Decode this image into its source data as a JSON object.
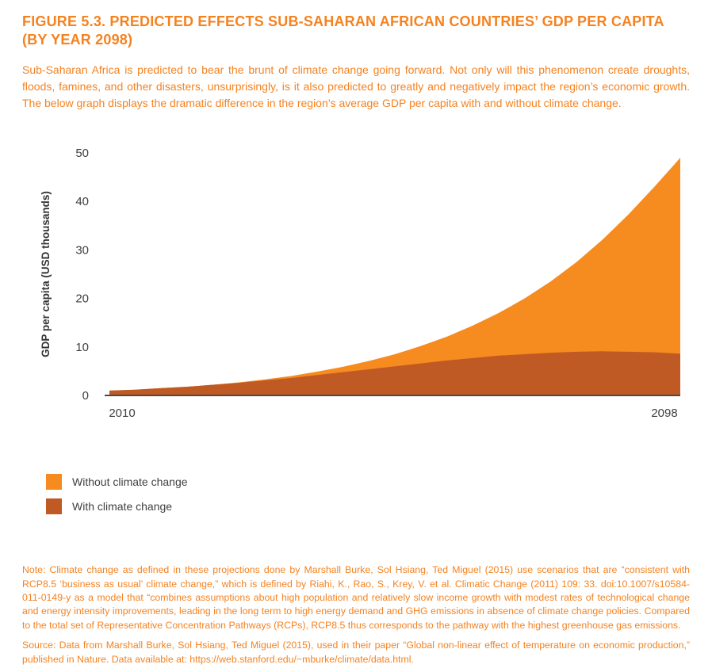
{
  "figure": {
    "title_line1": "FIGURE 5.3. PREDICTED EFFECTS SUB-SAHARAN AFRICAN COUNTRIES’ GDP PER CAPITA",
    "title_line2": "(BY YEAR 2098)",
    "intro": "Sub-Saharan Africa is predicted to bear the brunt of climate change going forward. Not only will this phenomenon create droughts, floods, famines, and other disasters, unsurprisingly, is it also predicted to greatly and negatively impact the region’s economic growth. The below graph displays the dramatic difference in the region’s average GDP per capita with and without climate change.",
    "note": "Note: Climate change as defined in these projections done by Marshall Burke, Sol Hsiang, Ted Miguel (2015) use scenarios that are “consistent with RCP8.5 ‘business as usual’ climate change,” which is defined by Riahi, K., Rao, S., Krey, V. et al. Climatic Change (2011) 109: 33. doi:10.1007/s10584-011-0149-y as a model that “combines assumptions about high population and relatively slow income growth with modest rates of technological change and energy intensity improvements, leading in the long term to high energy demand and GHG emissions in absence of climate change policies. Compared to the total set of Representative Concentration Pathways (RCPs), RCP8.5 thus corresponds to the pathway with the highest greenhouse gas emissions.",
    "source": "Source: Data from Marshall Burke, Sol Hsiang, Ted Miguel (2015), used in their paper “Global non-linear effect of temperature on economic production,” published in Nature. Data available at: https://web.stanford.edu/~mburke/climate/data.html."
  },
  "colors": {
    "accent_orange": "#F58220",
    "area_without": "#F68B1F",
    "area_with": "#C05A24",
    "axis_line": "#4a4a4c",
    "axis_text": "#3f3f41"
  },
  "chart_data": {
    "type": "area",
    "title": "",
    "xlabel": "",
    "ylabel": "GDP per capita (USD thousands)",
    "ylim": [
      0,
      50
    ],
    "yticks": [
      0,
      10,
      20,
      30,
      40,
      50
    ],
    "xticks": [
      {
        "label": "2010",
        "value": 2010
      },
      {
        "label": "2098",
        "value": 2098
      }
    ],
    "grid": false,
    "legend_position": "bottom-left",
    "x": [
      2010,
      2014,
      2018,
      2022,
      2026,
      2030,
      2034,
      2038,
      2042,
      2046,
      2050,
      2054,
      2058,
      2062,
      2066,
      2070,
      2074,
      2078,
      2082,
      2086,
      2090,
      2094,
      2098
    ],
    "series": [
      {
        "name": "Without climate change",
        "color": "#F68B1F",
        "values": [
          1.0,
          1.2,
          1.5,
          1.8,
          2.2,
          2.7,
          3.3,
          4.0,
          4.9,
          5.9,
          7.1,
          8.5,
          10.2,
          12.1,
          14.4,
          17.0,
          20.0,
          23.5,
          27.5,
          32.1,
          37.3,
          43.0,
          49.0
        ]
      },
      {
        "name": "With climate change",
        "color": "#C05A24",
        "values": [
          1.0,
          1.2,
          1.5,
          1.8,
          2.2,
          2.6,
          3.1,
          3.6,
          4.2,
          4.8,
          5.4,
          6.0,
          6.6,
          7.2,
          7.7,
          8.2,
          8.5,
          8.8,
          9.0,
          9.1,
          9.0,
          8.9,
          8.6
        ]
      }
    ]
  }
}
